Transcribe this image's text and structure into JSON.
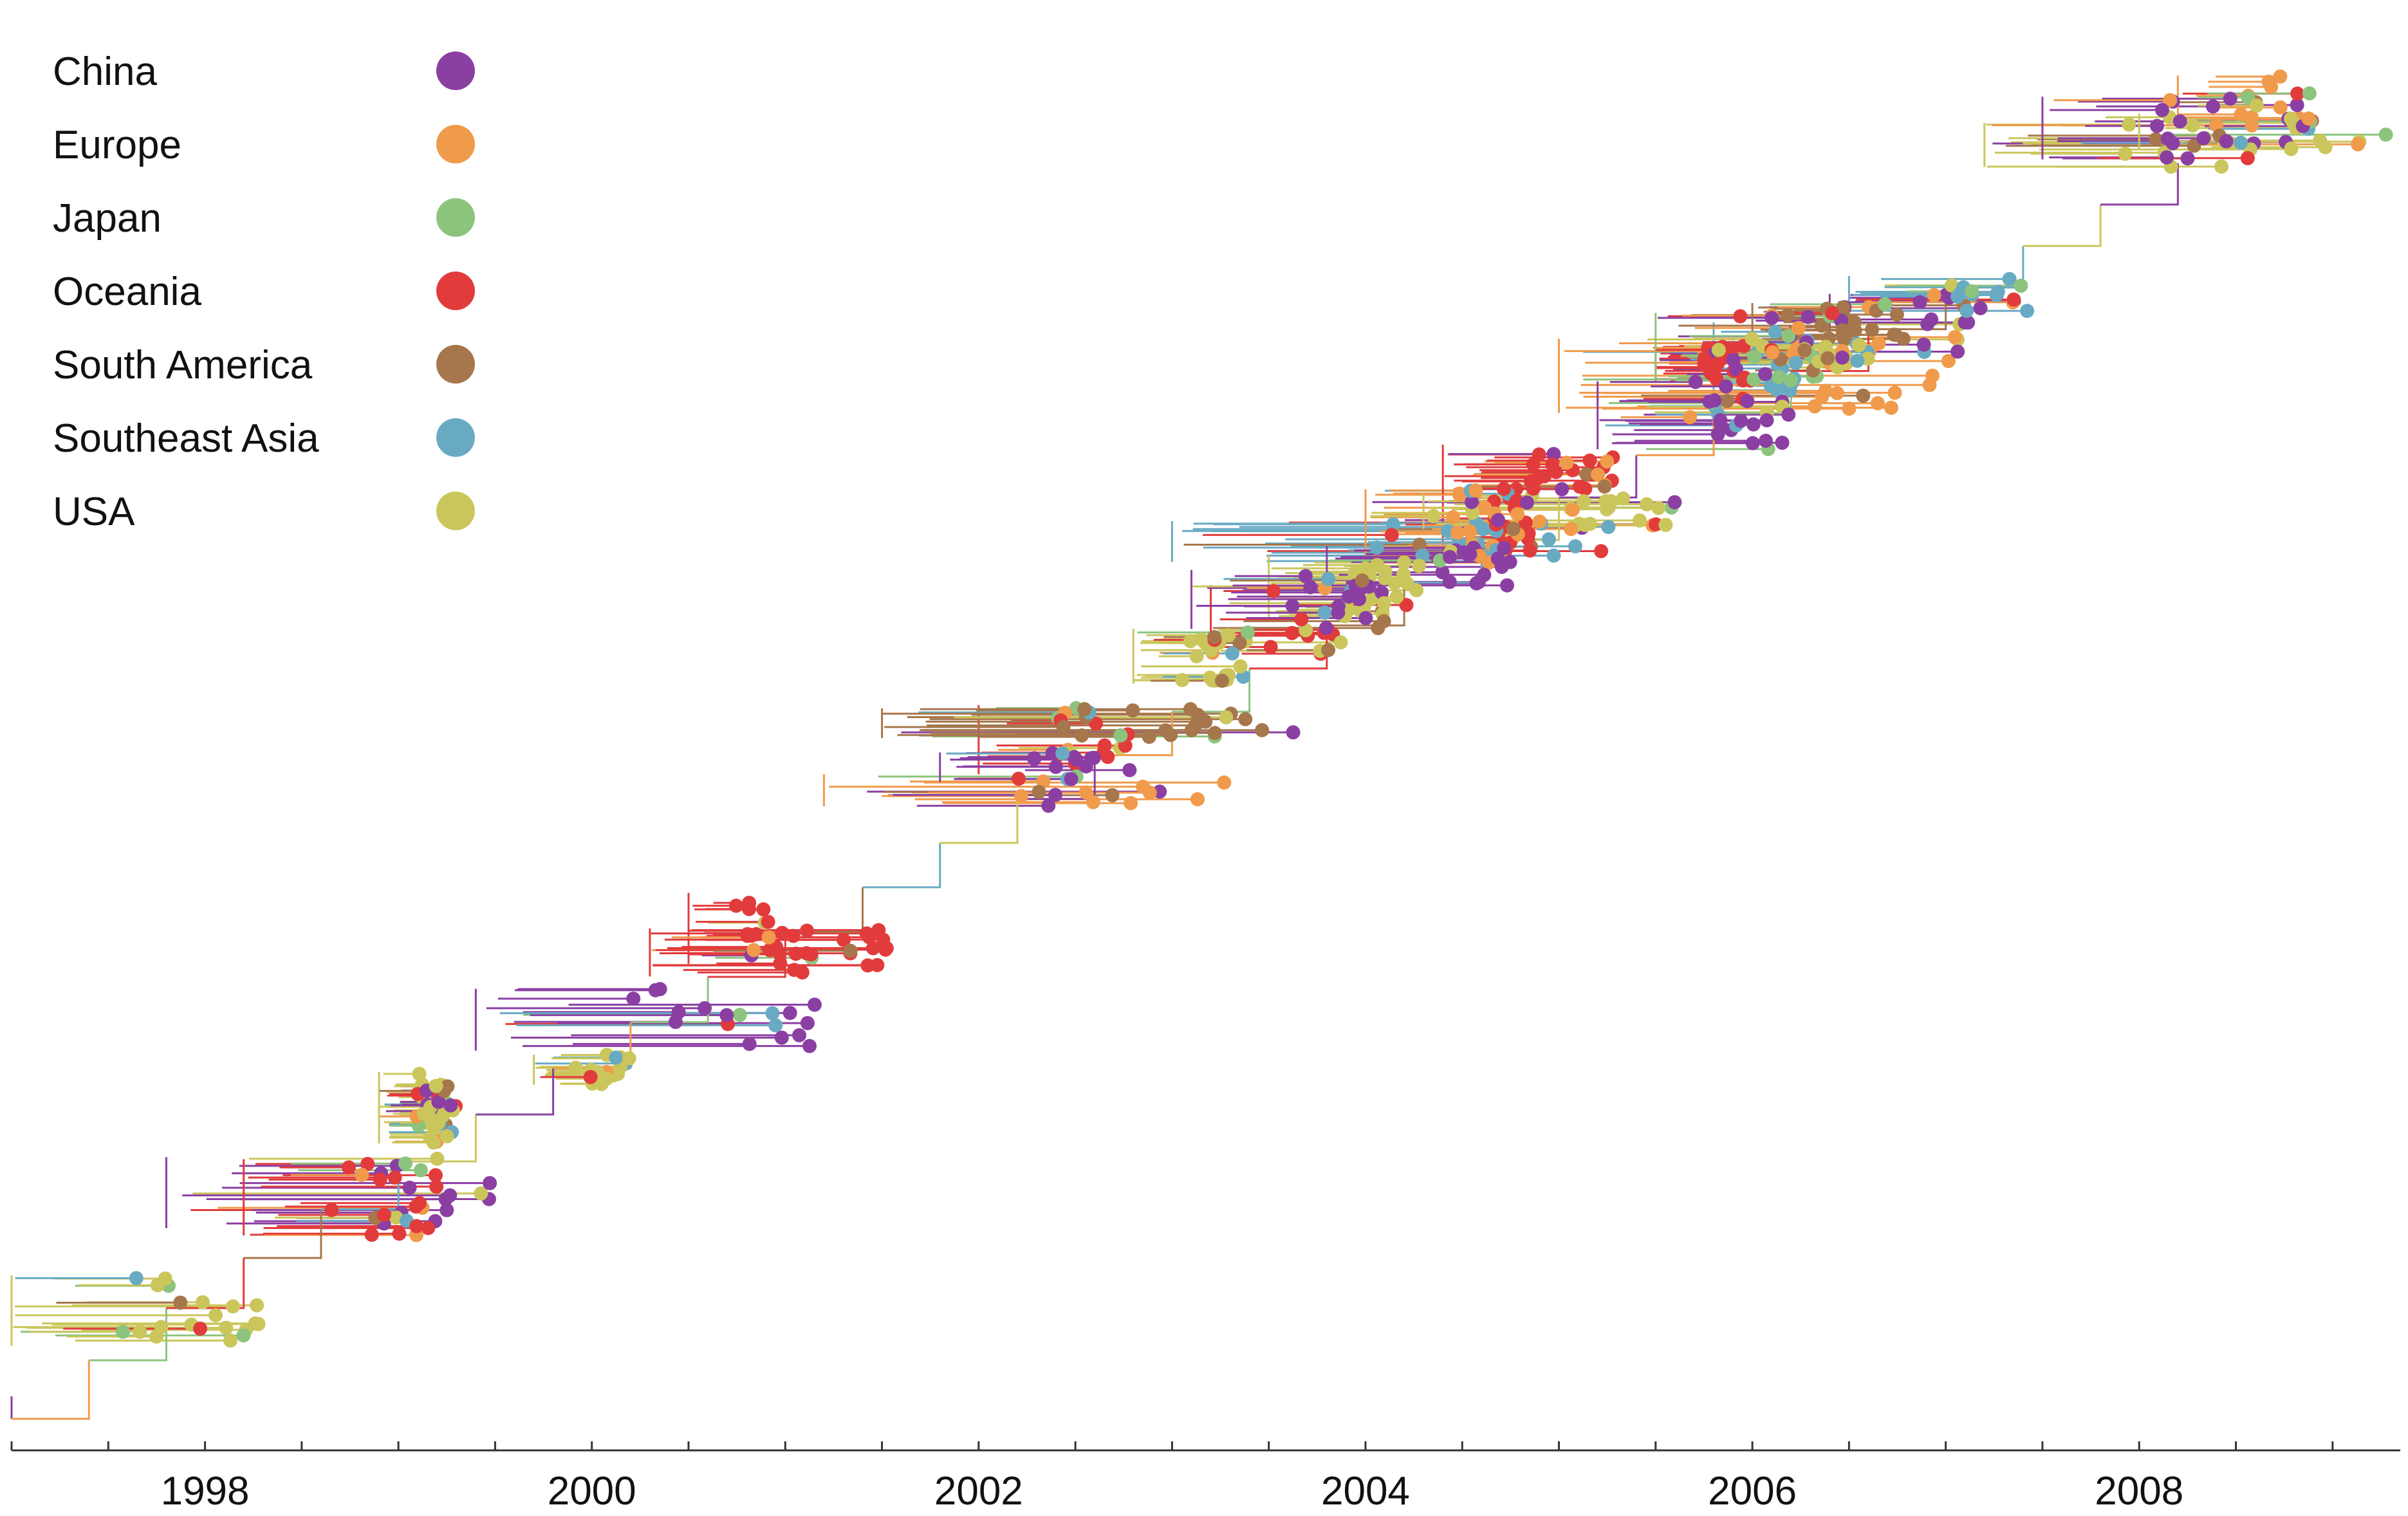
{
  "figure": {
    "type": "time-scaled phylogenetic tree",
    "x_axis": {
      "min": 1997.0,
      "max": 2009.35,
      "tick_labels": [
        "1998",
        "2000",
        "2002",
        "2004",
        "2006",
        "2008"
      ],
      "minor_tick_step": 0.5
    }
  },
  "legend": {
    "items": [
      {
        "key": "china",
        "label": "China",
        "color": "#8B3FA3"
      },
      {
        "key": "europe",
        "label": "Europe",
        "color": "#F09A4B"
      },
      {
        "key": "japan",
        "label": "Japan",
        "color": "#8CC47E"
      },
      {
        "key": "oceania",
        "label": "Oceania",
        "color": "#E23B3C"
      },
      {
        "key": "south_america",
        "label": "South America",
        "color": "#A6774C"
      },
      {
        "key": "southeast_asia",
        "label": "Southeast Asia",
        "color": "#69AAC3"
      },
      {
        "key": "usa",
        "label": "USA",
        "color": "#CBC65B"
      }
    ]
  },
  "clades": [
    {
      "region": "usa",
      "x": [
        1997.0,
        1998.3
      ]
    },
    {
      "region": "china",
      "x": [
        1997.8,
        1999.5
      ]
    },
    {
      "region": "oceania",
      "x": [
        1998.2,
        1999.2
      ]
    },
    {
      "region": "usa",
      "x": [
        1998.9,
        1999.3
      ]
    },
    {
      "region": "china",
      "x": [
        1999.4,
        2001.2
      ]
    },
    {
      "region": "oceania",
      "x": [
        2000.5,
        2001.0
      ]
    },
    {
      "region": "usa",
      "x": [
        1999.7,
        2000.2
      ]
    },
    {
      "region": "oceania",
      "x": [
        2000.3,
        2001.6
      ]
    },
    {
      "region": "usa",
      "x": [
        1998.9,
        1999.3
      ]
    },
    {
      "region": "oceania",
      "x": [
        2002.0,
        2002.8
      ]
    },
    {
      "region": "europe",
      "x": [
        2001.2,
        2003.3
      ]
    },
    {
      "region": "south_america",
      "x": [
        2001.5,
        2003.7
      ]
    },
    {
      "region": "china",
      "x": [
        2001.8,
        2002.6
      ]
    },
    {
      "region": "oceania",
      "x": [
        2004.4,
        2004.9
      ]
    },
    {
      "region": "southeast_asia",
      "x": [
        2003.0,
        2005.3
      ]
    },
    {
      "region": "usa",
      "x": [
        2002.8,
        2003.4
      ]
    },
    {
      "region": "oceania",
      "x": [
        2003.2,
        2003.9
      ]
    },
    {
      "region": "usa",
      "x": [
        2003.5,
        2004.3
      ]
    },
    {
      "region": "china",
      "x": [
        2003.1,
        2004.1
      ]
    },
    {
      "region": "europe",
      "x": [
        2004.0,
        2004.8
      ]
    },
    {
      "region": "china",
      "x": [
        2003.8,
        2004.8
      ]
    },
    {
      "region": "oceania",
      "x": [
        2005.5,
        2006.0
      ]
    },
    {
      "region": "southeast_asia",
      "x": [
        2005.8,
        2006.3
      ]
    },
    {
      "region": "oceania",
      "x": [
        2004.4,
        2005.3
      ]
    },
    {
      "region": "europe",
      "x": [
        2005.0,
        2007.2
      ]
    },
    {
      "region": "usa",
      "x": [
        2004.3,
        2005.6
      ]
    },
    {
      "region": "china",
      "x": [
        2005.2,
        2006.2
      ]
    },
    {
      "region": "china",
      "x": [
        2006.4,
        2007.2
      ]
    },
    {
      "region": "japan",
      "x": [
        2005.5,
        2006.4
      ]
    },
    {
      "region": "south_america",
      "x": [
        2006.0,
        2006.8
      ]
    },
    {
      "region": "usa",
      "x": [
        2005.9,
        2006.6
      ]
    },
    {
      "region": "southeast_asia",
      "x": [
        2006.5,
        2007.5
      ]
    },
    {
      "region": "usa",
      "x": [
        2007.2,
        2008.6
      ]
    },
    {
      "region": "china",
      "x": [
        2007.5,
        2008.6
      ]
    },
    {
      "region": "usa",
      "x": [
        2008.0,
        2009.3
      ]
    },
    {
      "region": "europe",
      "x": [
        2008.2,
        2008.9
      ]
    }
  ]
}
